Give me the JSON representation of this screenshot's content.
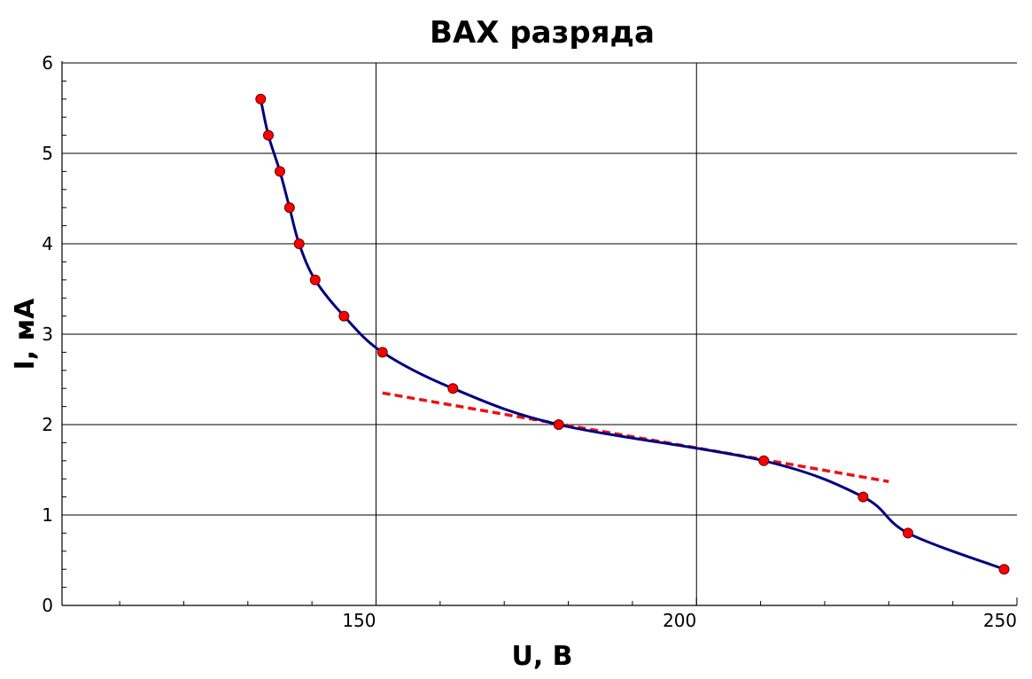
{
  "chart_data": {
    "type": "line",
    "title": "ВАХ разряда",
    "xlabel": "U, В",
    "ylabel": "I, мА",
    "xlim": [
      101,
      250
    ],
    "ylim": [
      0,
      6
    ],
    "x_ticks": [
      150,
      200,
      250
    ],
    "y_ticks": [
      0,
      1,
      2,
      3,
      4,
      5,
      6
    ],
    "x_minor_step": 10,
    "y_minor_step": 0.2,
    "grid": true,
    "colors": {
      "curve": "#000080",
      "points": "#ff0000",
      "tangent": "#ee1111",
      "grid": "#000000"
    },
    "series": [
      {
        "x": [
          132,
          133.2,
          135,
          136.5,
          138,
          140.5,
          145,
          151,
          162,
          178.5,
          210.5,
          226,
          233,
          248
        ],
        "y": [
          5.6,
          5.2,
          4.8,
          4.4,
          4.0,
          3.6,
          3.2,
          2.8,
          2.4,
          2.0,
          1.6,
          1.2,
          0.8,
          0.4
        ]
      }
    ],
    "tangent_line": {
      "style": "dashed",
      "x": [
        151,
        230
      ],
      "y": [
        2.35,
        1.37
      ]
    }
  }
}
